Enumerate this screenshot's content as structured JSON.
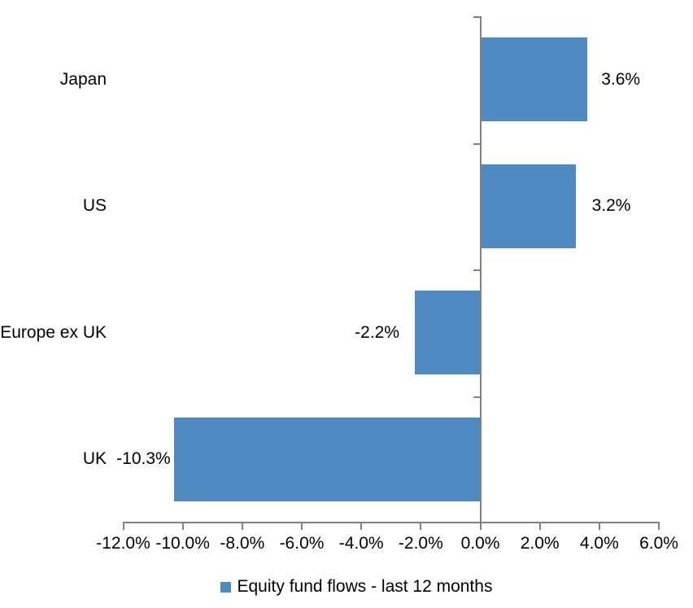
{
  "chart_data": {
    "type": "bar",
    "orientation": "horizontal",
    "title": "",
    "categories": [
      "Japan",
      "US",
      "Europe ex UK",
      "UK"
    ],
    "series": [
      {
        "name": "Equity fund flows - last 12 months",
        "values": [
          3.6,
          3.2,
          -2.2,
          -10.3
        ],
        "data_labels": [
          "3.6%",
          "3.2%",
          "-2.2%",
          "-10.3%"
        ]
      }
    ],
    "xlabel": "",
    "ylabel": "",
    "xlim": [
      -12,
      6
    ],
    "x_tick_step": 2,
    "x_ticks": [
      -12,
      -10,
      -8,
      -6,
      -4,
      -2,
      0,
      2,
      4,
      6
    ],
    "x_tick_labels": [
      "-12.0%",
      "-10.0%",
      "-8.0%",
      "-6.0%",
      "-4.0%",
      "-2.0%",
      "0.0%",
      "2.0%",
      "4.0%",
      "6.0%"
    ],
    "grid": false,
    "legend_position": "bottom",
    "data_label_position": "outside-end",
    "colors": {
      "bar_fill": "#4E8AC0",
      "axis_line": "#808080",
      "text": "#000000",
      "background": "#ffffff"
    }
  },
  "legend": {
    "label": "Equity fund flows - last 12 months",
    "swatch_color": "#4E8AC0"
  }
}
